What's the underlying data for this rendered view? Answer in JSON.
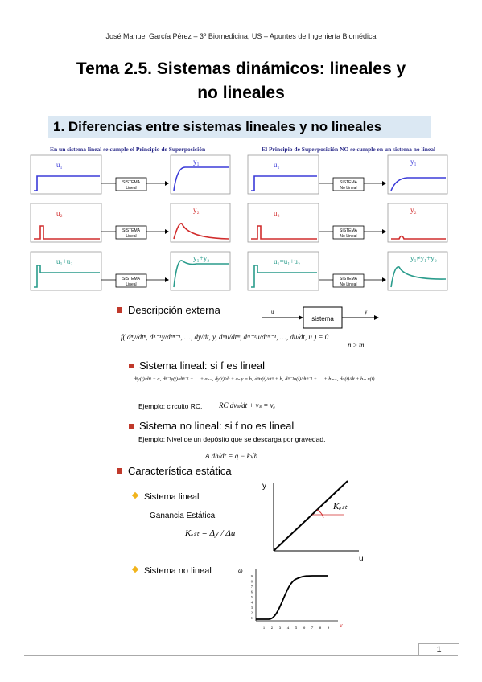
{
  "header": "José Manuel García Pérez – 3º Biomedicina, US – Apuntes de Ingeniería Biomédica",
  "title_line1": "Tema 2.5. Sistemas dinámicos: lineales y",
  "title_line2": "no lineales",
  "section": "1. Diferencias entre sistemas lineales y no lineales",
  "left_caption": "En un sistema lineal se cumple el Principio de Superposición",
  "right_caption": "El Principio de Superposición  NO se cumple en un sistema no lineal",
  "left_rows": [
    {
      "in": "u₁",
      "box": [
        "SISTEMA",
        "Lineal"
      ],
      "out": "y₁"
    },
    {
      "in": "u₂",
      "box": [
        "SISTEMA",
        "Lineal"
      ],
      "out": "y₂"
    },
    {
      "in": "u₁+u₂",
      "box": [
        "SISTEMA",
        "Lineal"
      ],
      "out": "y₁+y₂"
    }
  ],
  "right_rows": [
    {
      "in": "u₁",
      "box": [
        "SISTEMA",
        "No Lineal"
      ],
      "out": "y₁"
    },
    {
      "in": "u₂",
      "box": [
        "SISTEMA",
        "No Lineal"
      ],
      "out": "y₂"
    },
    {
      "in": "u₁=u₁+u₂",
      "box": [
        "SISTEMA",
        "No Lineal"
      ],
      "out": "y₁≠y₁+y₂"
    }
  ],
  "colors": {
    "blue": "#3b3bd8",
    "red": "#d12d2d",
    "teal": "#2a9c8c",
    "bullet": "#c0392b",
    "diamond": "#f1b41c"
  },
  "desc_externa": "Descripción externa",
  "block_label": "sistema",
  "block_in": "u",
  "block_out": "y",
  "eq_general": "f( dⁿy/dtⁿ, dⁿ⁻¹y/dtⁿ⁻¹, …, dy/dt, y, dᵐu/dtᵐ, dᵐ⁻¹u/dtᵐ⁻¹, …, du/dt, u ) = 0",
  "eq_cond": "n ≥ m",
  "sys_lineal": "Sistema lineal: si  f  es lineal",
  "eq_lineal": "dⁿy(t)/dtⁿ + a₁ dⁿ⁻¹y(t)/dtⁿ⁻¹ + … + aₙ₋₁ dy(t)/dt + aₙ y = b₀ dᵐu(t)/dtᵐ + b₁ dᵐ⁻¹u(t)/dtᵐ⁻¹ + … + bₘ₋₁ du(t)/dt + bₘ u(t)",
  "ejemplo_rc_label": "Ejemplo:  circuito RC.",
  "ejemplo_rc_eq": "RC dvₛ/dt + vₛ = vₑ",
  "sys_nolineal": "Sistema no lineal: si  f  no es lineal",
  "ejemplo_nl": "Ejemplo:  Nivel de un depósito que se descarga por gravedad.",
  "eq_nl": "A dh/dt = q − k√h",
  "caract": "Característica estática",
  "sl_item": "Sistema lineal",
  "ganancia": "Ganancia Estática:",
  "kest_eq": "Kₑₛₜ = Δy / Δu",
  "kest_label": "Kₑₛₜ",
  "axis_y": "y",
  "axis_u": "u",
  "snl_item": "Sistema no lineal",
  "nl_axis_y": "ω",
  "nl_axis_x": "v",
  "nl_xticks": [
    "1",
    "2",
    "3",
    "4",
    "5",
    "6",
    "7",
    "8",
    "9"
  ],
  "nl_yticks": [
    "1",
    "2",
    "3",
    "4",
    "5",
    "6",
    "7",
    "8",
    "9"
  ],
  "page_number": "1"
}
